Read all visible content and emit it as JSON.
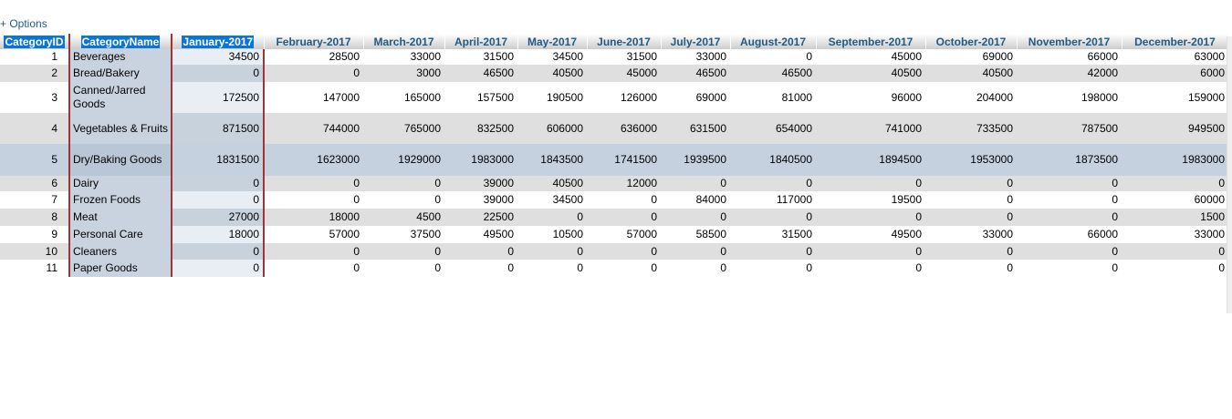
{
  "options_link": "+ Options",
  "columns": [
    "CategoryID",
    "CategoryName",
    "January-2017",
    "February-2017",
    "March-2017",
    "April-2017",
    "May-2017",
    "June-2017",
    "July-2017",
    "August-2017",
    "September-2017",
    "October-2017",
    "November-2017",
    "December-2017"
  ],
  "rows": [
    {
      "id": "1",
      "name": "Beverages",
      "values": [
        "34500",
        "28500",
        "33000",
        "31500",
        "34500",
        "31500",
        "33000",
        "0",
        "45000",
        "69000",
        "66000",
        "63000"
      ]
    },
    {
      "id": "2",
      "name": "Bread/Bakery",
      "values": [
        "0",
        "0",
        "3000",
        "46500",
        "40500",
        "45000",
        "46500",
        "46500",
        "40500",
        "40500",
        "42000",
        "6000"
      ]
    },
    {
      "id": "3",
      "name": "Canned/Jarred Goods",
      "values": [
        "172500",
        "147000",
        "165000",
        "157500",
        "190500",
        "126000",
        "69000",
        "81000",
        "96000",
        "204000",
        "198000",
        "159000"
      ]
    },
    {
      "id": "4",
      "name": "Vegetables & Fruits",
      "values": [
        "871500",
        "744000",
        "765000",
        "832500",
        "606000",
        "636000",
        "631500",
        "654000",
        "741000",
        "733500",
        "787500",
        "949500"
      ]
    },
    {
      "id": "5",
      "name": "Dry/Baking Goods",
      "values": [
        "1831500",
        "1623000",
        "1929000",
        "1983000",
        "1843500",
        "1741500",
        "1939500",
        "1840500",
        "1894500",
        "1953000",
        "1873500",
        "1983000"
      ]
    },
    {
      "id": "6",
      "name": "Dairy",
      "values": [
        "0",
        "0",
        "0",
        "39000",
        "40500",
        "12000",
        "0",
        "0",
        "0",
        "0",
        "0",
        "0"
      ]
    },
    {
      "id": "7",
      "name": "Frozen Foods",
      "values": [
        "0",
        "0",
        "0",
        "39000",
        "34500",
        "0",
        "84000",
        "117000",
        "19500",
        "0",
        "0",
        "60000"
      ]
    },
    {
      "id": "8",
      "name": "Meat",
      "values": [
        "27000",
        "18000",
        "4500",
        "22500",
        "0",
        "0",
        "0",
        "0",
        "0",
        "0",
        "0",
        "1500"
      ]
    },
    {
      "id": "9",
      "name": "Personal Care",
      "values": [
        "18000",
        "57000",
        "37500",
        "49500",
        "10500",
        "57000",
        "58500",
        "31500",
        "49500",
        "33000",
        "66000",
        "33000"
      ]
    },
    {
      "id": "10",
      "name": "Cleaners",
      "values": [
        "0",
        "0",
        "0",
        "0",
        "0",
        "0",
        "0",
        "0",
        "0",
        "0",
        "0",
        "0"
      ]
    },
    {
      "id": "11",
      "name": "Paper Goods",
      "values": [
        "0",
        "0",
        "0",
        "0",
        "0",
        "0",
        "0",
        "0",
        "0",
        "0",
        "0",
        "0"
      ]
    }
  ],
  "colors": {
    "header_text": "#235a81",
    "selected_header": "#0a74d9",
    "row_stripe": "#dfdfdf",
    "row_highlight": "#c5d1df",
    "column_marker": "#a33333"
  }
}
